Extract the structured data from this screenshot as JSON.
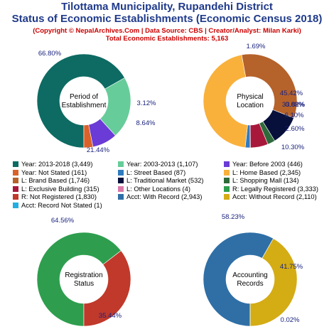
{
  "header": {
    "title_line1": "Tilottama Municipality, Rupandehi District",
    "title_line2": "Status of Economic Establishments (Economic Census 2018)",
    "copyright": "(Copyright © NepalArchives.Com | Data Source: CBS | Creator/Analyst: Milan Karki)",
    "total": "Total Economic Establishments: 5,163"
  },
  "chart_data": [
    {
      "type": "pie",
      "center_label": [
        "Period of",
        "Establishment"
      ],
      "slices": [
        {
          "label": "Year: 2013-2018",
          "value": 3449,
          "pct_label": "66.80%",
          "color": "#0d6b63"
        },
        {
          "label": "Year: 2003-2013",
          "value": 1107,
          "pct_label": "21.44%",
          "color": "#66cc9a"
        },
        {
          "label": "Year: Before 2003",
          "value": 446,
          "pct_label": "8.64%",
          "color": "#6a3bd6"
        },
        {
          "label": "Year: Not Stated",
          "value": 161,
          "pct_label": "3.12%",
          "color": "#d8622a"
        }
      ]
    },
    {
      "type": "pie",
      "center_label": [
        "Physical",
        "Location"
      ],
      "slices": [
        {
          "label": "L: Street Based",
          "value": 87,
          "pct_label": "1.69%",
          "color": "#2f7bbf"
        },
        {
          "label": "L: Home Based",
          "value": 2345,
          "pct_label": "45.42%",
          "color": "#f9b13c"
        },
        {
          "label": "L: Brand Based",
          "value": 1746,
          "pct_label": "33.82%",
          "color": "#b5622b"
        },
        {
          "label": "L: Traditional Market",
          "value": 532,
          "pct_label": "10.30%",
          "color": "#07103a"
        },
        {
          "label": "L: Shopping Mall",
          "value": 134,
          "pct_label": "2.60%",
          "color": "#2f6b3a"
        },
        {
          "label": "L: Exclusive Building",
          "value": 315,
          "pct_label": "6.10%",
          "color": "#a8183a"
        },
        {
          "label": "L: Other Locations",
          "value": 4,
          "pct_label": "0.08%",
          "color": "#d97aa8"
        }
      ]
    },
    {
      "type": "pie",
      "center_label": [
        "Registration",
        "Status"
      ],
      "slices": [
        {
          "label": "R: Legally Registered",
          "value": 3333,
          "pct_label": "64.56%",
          "color": "#2e9e4e"
        },
        {
          "label": "R: Not Registered",
          "value": 1830,
          "pct_label": "35.44%",
          "color": "#c0392b"
        }
      ]
    },
    {
      "type": "pie",
      "center_label": [
        "Accounting",
        "Records"
      ],
      "slices": [
        {
          "label": "Acct: With Record",
          "value": 2943,
          "pct_label": "58.23%",
          "color": "#2f6fa6"
        },
        {
          "label": "Acct: Without Record",
          "value": 2110,
          "pct_label": "41.75%",
          "color": "#d4ac14"
        },
        {
          "label": "Acct: Record Not Stated",
          "value": 1,
          "pct_label": "0.02%",
          "color": "#22aee0"
        }
      ]
    }
  ],
  "legend": [
    {
      "text": "Year: 2013-2018 (3,449)",
      "color": "#0d6b63"
    },
    {
      "text": "Year: 2003-2013 (1,107)",
      "color": "#66cc9a"
    },
    {
      "text": "Year: Before 2003 (446)",
      "color": "#6a3bd6"
    },
    {
      "text": "Year: Not Stated (161)",
      "color": "#d8622a"
    },
    {
      "text": "L: Street Based (87)",
      "color": "#2f7bbf"
    },
    {
      "text": "L: Home Based (2,345)",
      "color": "#f9b13c"
    },
    {
      "text": "L: Brand Based (1,746)",
      "color": "#b5622b"
    },
    {
      "text": "L: Traditional Market (532)",
      "color": "#07103a"
    },
    {
      "text": "L: Shopping Mall (134)",
      "color": "#2f6b3a"
    },
    {
      "text": "L: Exclusive Building (315)",
      "color": "#a8183a"
    },
    {
      "text": "L: Other Locations (4)",
      "color": "#d97aa8"
    },
    {
      "text": "R: Legally Registered (3,333)",
      "color": "#2e9e4e"
    },
    {
      "text": "R: Not Registered (1,830)",
      "color": "#c0392b"
    },
    {
      "text": "Acct: With Record (2,943)",
      "color": "#2f6fa6"
    },
    {
      "text": "Acct: Without Record (2,110)",
      "color": "#d4ac14"
    },
    {
      "text": "Acct: Record Not Stated (1)",
      "color": "#22aee0"
    }
  ]
}
